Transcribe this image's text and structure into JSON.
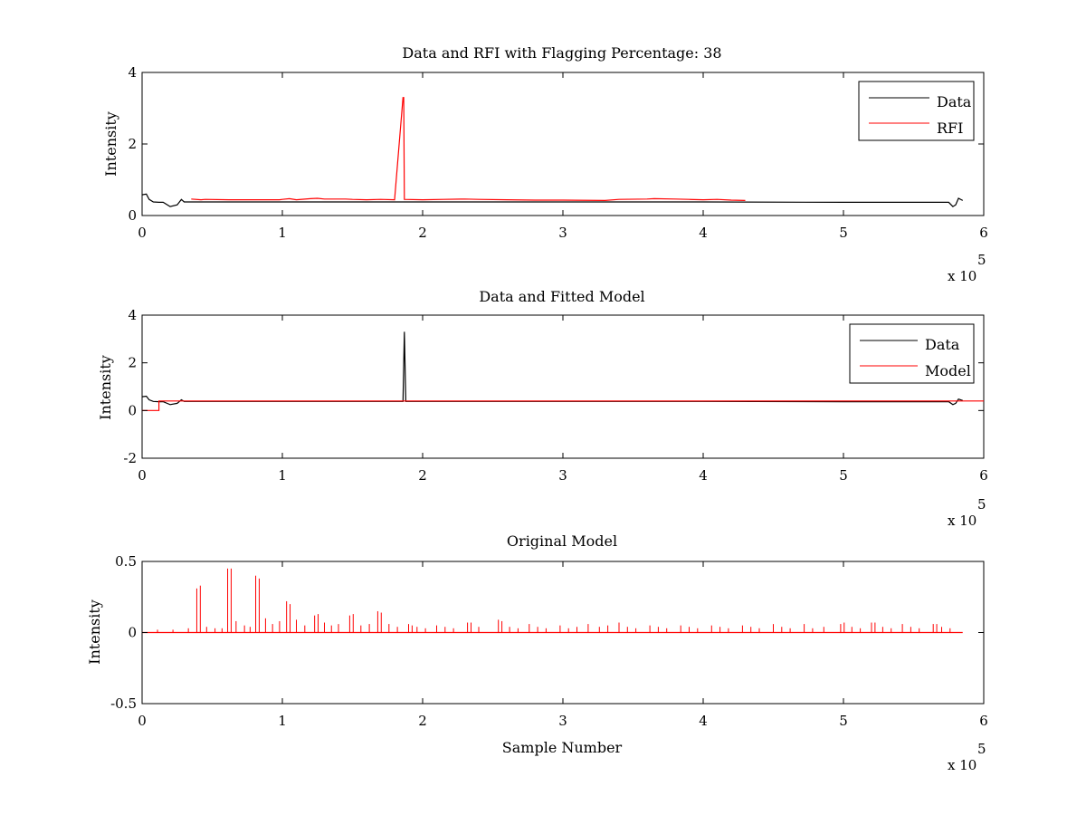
{
  "chart_data": [
    {
      "type": "line",
      "title": "Data and RFI with Flagging Percentage: 38",
      "xlabel": "",
      "ylabel": "Intensity",
      "xlim": [
        0,
        600000
      ],
      "ylim": [
        0,
        4
      ],
      "xticks": [
        0,
        1,
        2,
        3,
        4,
        5,
        6
      ],
      "yticks": [
        0,
        2,
        4
      ],
      "x_multiplier_label": "x 10",
      "x_multiplier_exponent": "5",
      "legend": "top-right",
      "series": [
        {
          "name": "Data",
          "color": "#000000",
          "x": [
            0,
            3000,
            5000,
            8000,
            12000,
            15000,
            20000,
            25000,
            28000,
            30000,
            60000,
            100000,
            150000,
            186000,
            187000,
            188000,
            200000,
            300000,
            400000,
            500000,
            575000,
            578000,
            580000,
            582000,
            585000
          ],
          "y": [
            0.58,
            0.6,
            0.45,
            0.38,
            0.37,
            0.37,
            0.25,
            0.3,
            0.45,
            0.38,
            0.38,
            0.38,
            0.38,
            0.38,
            0.38,
            0.38,
            0.38,
            0.38,
            0.38,
            0.37,
            0.37,
            0.25,
            0.3,
            0.48,
            0.42
          ]
        },
        {
          "name": "RFI",
          "color": "#ff0000",
          "x": [
            35000,
            42000,
            45000,
            62000,
            80000,
            98000,
            100000,
            105000,
            110000,
            120000,
            125000,
            130000,
            145000,
            150000,
            160000,
            170000,
            180000,
            186000,
            186500,
            187000,
            200000,
            215000,
            230000,
            240000,
            260000,
            280000,
            300000,
            330000,
            340000,
            360000,
            365000,
            380000,
            390000,
            400000,
            410000,
            420000,
            430000
          ],
          "y": [
            0.46,
            0.44,
            0.45,
            0.44,
            0.44,
            0.44,
            0.45,
            0.47,
            0.44,
            0.47,
            0.48,
            0.46,
            0.46,
            0.45,
            0.44,
            0.45,
            0.44,
            3.3,
            3.3,
            0.45,
            0.44,
            0.45,
            0.46,
            0.45,
            0.44,
            0.43,
            0.43,
            0.42,
            0.45,
            0.46,
            0.47,
            0.46,
            0.45,
            0.44,
            0.45,
            0.43,
            0.42
          ]
        }
      ]
    },
    {
      "type": "line",
      "title": "Data and Fitted Model",
      "xlabel": "",
      "ylabel": "Intensity",
      "xlim": [
        0,
        600000
      ],
      "ylim": [
        -2,
        4
      ],
      "xticks": [
        0,
        1,
        2,
        3,
        4,
        5,
        6
      ],
      "yticks": [
        -2,
        0,
        2,
        4
      ],
      "x_multiplier_label": "x 10",
      "x_multiplier_exponent": "5",
      "legend": "top-right",
      "series": [
        {
          "name": "Data",
          "color": "#000000",
          "x": [
            0,
            3000,
            5000,
            8000,
            12000,
            15000,
            20000,
            25000,
            28000,
            30000,
            60000,
            100000,
            150000,
            186000,
            187000,
            188000,
            200000,
            300000,
            400000,
            500000,
            575000,
            578000,
            580000,
            582000,
            585000
          ],
          "y": [
            0.58,
            0.6,
            0.45,
            0.38,
            0.37,
            0.37,
            0.25,
            0.3,
            0.45,
            0.38,
            0.38,
            0.38,
            0.38,
            0.38,
            3.3,
            0.38,
            0.38,
            0.38,
            0.38,
            0.37,
            0.37,
            0.25,
            0.3,
            0.48,
            0.42
          ]
        },
        {
          "name": "Model",
          "color": "#ff0000",
          "x": [
            0,
            12000,
            12001,
            600000
          ],
          "y": [
            0,
            0,
            0.4,
            0.4
          ]
        }
      ]
    },
    {
      "type": "line",
      "title": "Original Model",
      "xlabel": "Sample Number",
      "ylabel": "Intensity",
      "xlim": [
        0,
        600000
      ],
      "ylim": [
        -0.5,
        0.5
      ],
      "xticks": [
        0,
        1,
        2,
        3,
        4,
        5,
        6
      ],
      "yticks": [
        -0.5,
        0,
        0.5
      ],
      "ytick_labels": [
        "-0.5",
        "0",
        "0.5"
      ],
      "x_multiplier_label": "x 10",
      "x_multiplier_exponent": "5",
      "series": [
        {
          "color": "#ff0000",
          "baseline_y": 0,
          "x_end": 585000,
          "spikes": [
            [
              39000,
              0.31
            ],
            [
              41500,
              0.33
            ],
            [
              61000,
              0.45
            ],
            [
              63500,
              0.45
            ],
            [
              81000,
              0.4
            ],
            [
              83500,
              0.38
            ],
            [
              103000,
              0.22
            ],
            [
              105500,
              0.2
            ],
            [
              123000,
              0.12
            ],
            [
              125500,
              0.13
            ],
            [
              148000,
              0.12
            ],
            [
              150500,
              0.13
            ],
            [
              168000,
              0.15
            ],
            [
              170500,
              0.14
            ],
            [
              190000,
              0.06
            ],
            [
              192500,
              0.05
            ],
            [
              210000,
              0.05
            ],
            [
              232000,
              0.07
            ],
            [
              234500,
              0.07
            ],
            [
              254000,
              0.09
            ],
            [
              256500,
              0.08
            ],
            [
              276000,
              0.06
            ],
            [
              298000,
              0.05
            ],
            [
              318000,
              0.06
            ],
            [
              340000,
              0.07
            ],
            [
              362000,
              0.05
            ],
            [
              384000,
              0.05
            ],
            [
              406000,
              0.05
            ],
            [
              428000,
              0.05
            ],
            [
              450000,
              0.06
            ],
            [
              472000,
              0.06
            ],
            [
              498000,
              0.06
            ],
            [
              500500,
              0.07
            ],
            [
              520000,
              0.07
            ],
            [
              522500,
              0.07
            ],
            [
              542000,
              0.06
            ],
            [
              564000,
              0.06
            ],
            [
              566500,
              0.06
            ],
            [
              11000,
              0.02
            ],
            [
              22000,
              0.02
            ],
            [
              33000,
              0.03
            ],
            [
              46000,
              0.04
            ],
            [
              52000,
              0.03
            ],
            [
              57000,
              0.03
            ],
            [
              67000,
              0.08
            ],
            [
              73000,
              0.05
            ],
            [
              77000,
              0.04
            ],
            [
              88000,
              0.1
            ],
            [
              93000,
              0.06
            ],
            [
              98000,
              0.08
            ],
            [
              110000,
              0.09
            ],
            [
              116000,
              0.05
            ],
            [
              130000,
              0.07
            ],
            [
              135000,
              0.05
            ],
            [
              140000,
              0.06
            ],
            [
              156000,
              0.05
            ],
            [
              162000,
              0.06
            ],
            [
              176000,
              0.06
            ],
            [
              182000,
              0.04
            ],
            [
              196000,
              0.04
            ],
            [
              202000,
              0.03
            ],
            [
              216000,
              0.04
            ],
            [
              222000,
              0.03
            ],
            [
              240000,
              0.04
            ],
            [
              262000,
              0.04
            ],
            [
              268000,
              0.03
            ],
            [
              282000,
              0.04
            ],
            [
              288000,
              0.03
            ],
            [
              304000,
              0.03
            ],
            [
              310000,
              0.04
            ],
            [
              326000,
              0.04
            ],
            [
              332000,
              0.05
            ],
            [
              346000,
              0.04
            ],
            [
              352000,
              0.03
            ],
            [
              368000,
              0.04
            ],
            [
              374000,
              0.03
            ],
            [
              390000,
              0.04
            ],
            [
              396000,
              0.03
            ],
            [
              412000,
              0.04
            ],
            [
              418000,
              0.03
            ],
            [
              434000,
              0.04
            ],
            [
              440000,
              0.03
            ],
            [
              456000,
              0.04
            ],
            [
              462000,
              0.03
            ],
            [
              478000,
              0.03
            ],
            [
              486000,
              0.04
            ],
            [
              506000,
              0.04
            ],
            [
              512000,
              0.03
            ],
            [
              528000,
              0.04
            ],
            [
              534000,
              0.03
            ],
            [
              548000,
              0.04
            ],
            [
              554000,
              0.03
            ],
            [
              570000,
              0.04
            ],
            [
              576000,
              0.03
            ]
          ]
        }
      ]
    }
  ]
}
